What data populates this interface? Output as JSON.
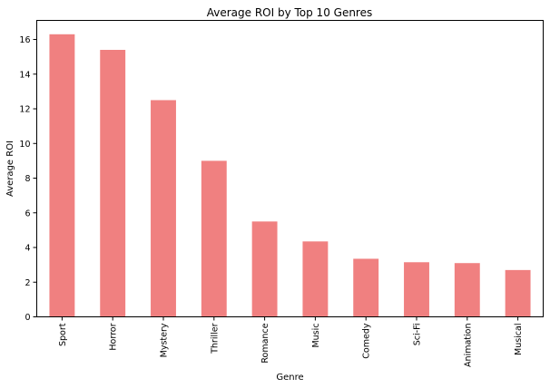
{
  "chart_data": {
    "type": "bar",
    "title": "Average ROI by Top 10 Genres",
    "xlabel": "Genre",
    "ylabel": "Average ROI",
    "categories": [
      "Sport",
      "Horror",
      "Mystery",
      "Thriller",
      "Romance",
      "Music",
      "Comedy",
      "Sci-Fi",
      "Animation",
      "Musical"
    ],
    "values": [
      16.3,
      15.4,
      12.5,
      9.0,
      5.5,
      4.35,
      3.35,
      3.15,
      3.1,
      2.7
    ],
    "ylim": [
      0,
      17.1
    ],
    "yticks": [
      0,
      2,
      4,
      6,
      8,
      10,
      12,
      14,
      16
    ],
    "bar_color": "#f08080",
    "grid": false,
    "legend": "none"
  }
}
